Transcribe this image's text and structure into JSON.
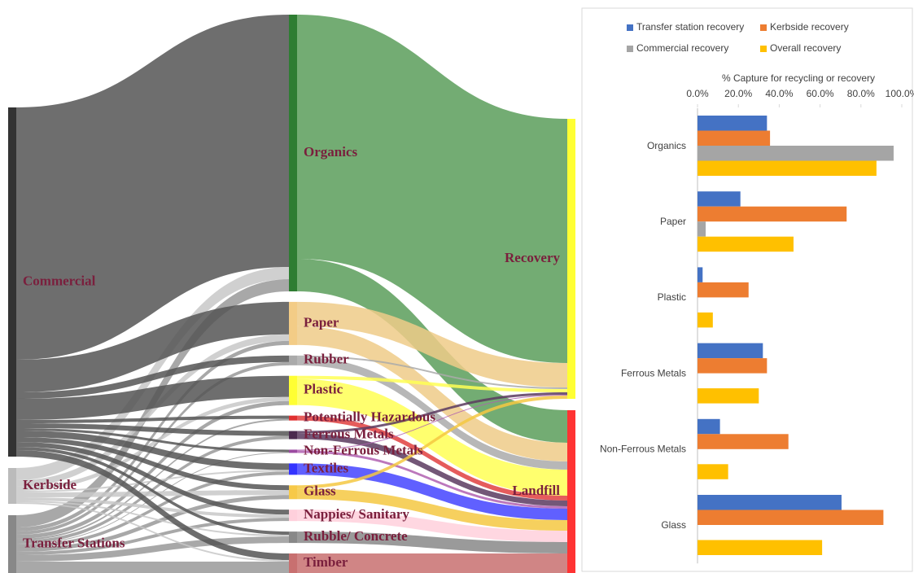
{
  "chart_data": [
    {
      "type": "sankey",
      "nodes": [
        {
          "name": "Commercial",
          "color": "#333333",
          "flow_color": "#555555"
        },
        {
          "name": "Kerbside",
          "color": "#bbbbbb",
          "flow_color": "#c8c8c8"
        },
        {
          "name": "Transfer Stations",
          "color": "#888888",
          "flow_color": "#999999"
        },
        {
          "name": "Organics",
          "color": "#2e7d32",
          "flow_color": "#5a9e5a"
        },
        {
          "name": "Paper",
          "color": "#f3cc86",
          "flow_color": "#efcb88"
        },
        {
          "name": "Rubber",
          "color": "#aaaaaa",
          "flow_color": "#aaaaaa"
        },
        {
          "name": "Plastic",
          "color": "#ffff33",
          "flow_color": "#ffff55"
        },
        {
          "name": "Potentially Hazardous",
          "color": "#e03030",
          "flow_color": "#e04040"
        },
        {
          "name": "Ferrous Metals",
          "color": "#4b2a4f",
          "flow_color": "#5b3a5f"
        },
        {
          "name": "Non-Ferrous Metals",
          "color": "#9b4aa0",
          "flow_color": "#b060b0"
        },
        {
          "name": "Textiles",
          "color": "#3333ff",
          "flow_color": "#4444ff"
        },
        {
          "name": "Glass",
          "color": "#f7c948",
          "flow_color": "#f5c842"
        },
        {
          "name": "Nappies/ Sanitary",
          "color": "#ffd0dc",
          "flow_color": "#ffd0dc"
        },
        {
          "name": "Rubble/ Concrete",
          "color": "#888888",
          "flow_color": "#888888"
        },
        {
          "name": "Timber",
          "color": "#c87070",
          "flow_color": "#c87070"
        },
        {
          "name": "Recovery",
          "color": "#ffff33"
        },
        {
          "name": "Landfill",
          "color": "#ff3333"
        }
      ],
      "links": [
        {
          "source": "Commercial",
          "target": "Organics",
          "value": 310
        },
        {
          "source": "Kerbside",
          "target": "Organics",
          "value": 15
        },
        {
          "source": "Transfer Stations",
          "target": "Organics",
          "value": 15
        },
        {
          "source": "Commercial",
          "target": "Paper",
          "value": 40
        },
        {
          "source": "Kerbside",
          "target": "Paper",
          "value": 8
        },
        {
          "source": "Transfer Stations",
          "target": "Paper",
          "value": 5
        },
        {
          "source": "Commercial",
          "target": "Rubber",
          "value": 8
        },
        {
          "source": "Transfer Stations",
          "target": "Rubber",
          "value": 4
        },
        {
          "source": "Commercial",
          "target": "Plastic",
          "value": 26
        },
        {
          "source": "Kerbside",
          "target": "Plastic",
          "value": 5
        },
        {
          "source": "Transfer Stations",
          "target": "Plastic",
          "value": 5
        },
        {
          "source": "Commercial",
          "target": "Potentially Hazardous",
          "value": 4
        },
        {
          "source": "Transfer Stations",
          "target": "Potentially Hazardous",
          "value": 2
        },
        {
          "source": "Commercial",
          "target": "Ferrous Metals",
          "value": 6
        },
        {
          "source": "Transfer Stations",
          "target": "Ferrous Metals",
          "value": 4
        },
        {
          "source": "Commercial",
          "target": "Non-Ferrous Metals",
          "value": 3
        },
        {
          "source": "Transfer Stations",
          "target": "Non-Ferrous Metals",
          "value": 1
        },
        {
          "source": "Commercial",
          "target": "Textiles",
          "value": 8
        },
        {
          "source": "Kerbside",
          "target": "Textiles",
          "value": 2
        },
        {
          "source": "Transfer Stations",
          "target": "Textiles",
          "value": 4
        },
        {
          "source": "Commercial",
          "target": "Glass",
          "value": 6
        },
        {
          "source": "Kerbside",
          "target": "Glass",
          "value": 6
        },
        {
          "source": "Transfer Stations",
          "target": "Glass",
          "value": 5
        },
        {
          "source": "Commercial",
          "target": "Nappies/ Sanitary",
          "value": 6
        },
        {
          "source": "Kerbside",
          "target": "Nappies/ Sanitary",
          "value": 4
        },
        {
          "source": "Transfer Stations",
          "target": "Nappies/ Sanitary",
          "value": 4
        },
        {
          "source": "Commercial",
          "target": "Rubble/ Concrete",
          "value": 4
        },
        {
          "source": "Kerbside",
          "target": "Rubble/ Concrete",
          "value": 2
        },
        {
          "source": "Transfer Stations",
          "target": "Rubble/ Concrete",
          "value": 8
        },
        {
          "source": "Commercial",
          "target": "Timber",
          "value": 8
        },
        {
          "source": "Kerbside",
          "target": "Timber",
          "value": 2
        },
        {
          "source": "Transfer Stations",
          "target": "Timber",
          "value": 14
        },
        {
          "source": "Organics",
          "target": "Recovery",
          "value": 300
        },
        {
          "source": "Organics",
          "target": "Landfill",
          "value": 40
        },
        {
          "source": "Paper",
          "target": "Recovery",
          "value": 30
        },
        {
          "source": "Paper",
          "target": "Landfill",
          "value": 23
        },
        {
          "source": "Rubber",
          "target": "Recovery",
          "value": 2
        },
        {
          "source": "Rubber",
          "target": "Landfill",
          "value": 10
        },
        {
          "source": "Plastic",
          "target": "Recovery",
          "value": 4
        },
        {
          "source": "Plastic",
          "target": "Landfill",
          "value": 32
        },
        {
          "source": "Potentially Hazardous",
          "target": "Landfill",
          "value": 6
        },
        {
          "source": "Ferrous Metals",
          "target": "Recovery",
          "value": 3
        },
        {
          "source": "Ferrous Metals",
          "target": "Landfill",
          "value": 7
        },
        {
          "source": "Non-Ferrous Metals",
          "target": "Recovery",
          "value": 1
        },
        {
          "source": "Non-Ferrous Metals",
          "target": "Landfill",
          "value": 3
        },
        {
          "source": "Textiles",
          "target": "Landfill",
          "value": 14
        },
        {
          "source": "Glass",
          "target": "Recovery",
          "value": 4
        },
        {
          "source": "Glass",
          "target": "Landfill",
          "value": 13
        },
        {
          "source": "Nappies/ Sanitary",
          "target": "Landfill",
          "value": 14
        },
        {
          "source": "Rubble/ Concrete",
          "target": "Landfill",
          "value": 14
        },
        {
          "source": "Timber",
          "target": "Landfill",
          "value": 24
        }
      ]
    },
    {
      "type": "bar",
      "orientation": "horizontal",
      "x_label": "% Capture for recycling or recovery",
      "categories": [
        "Organics",
        "Paper",
        "Plastic",
        "Ferrous Metals",
        "Non-Ferrous Metals",
        "Glass"
      ],
      "series": [
        {
          "name": "Transfer station recovery",
          "color": "#4472c4",
          "values": [
            34,
            21,
            2.5,
            32,
            11,
            70.5
          ]
        },
        {
          "name": "Kerbside recovery",
          "color": "#ed7d31",
          "values": [
            35.5,
            73,
            25,
            34,
            44.5,
            91
          ]
        },
        {
          "name": "Commercial recovery",
          "color": "#a5a5a5",
          "values": [
            96,
            4,
            null,
            null,
            null,
            null
          ]
        },
        {
          "name": "Overall recovery",
          "color": "#ffc000",
          "values": [
            87.6,
            47,
            7.5,
            30,
            15,
            61
          ]
        }
      ],
      "xlim": [
        0,
        100
      ],
      "xticks": [
        {
          "value": 0,
          "label": "0.0%"
        },
        {
          "value": 20,
          "label": "20.0%"
        },
        {
          "value": 40,
          "label": "40.0%"
        },
        {
          "value": 60,
          "label": "60.0%"
        },
        {
          "value": 80,
          "label": "80.0%"
        },
        {
          "value": 100,
          "label": "100.0%"
        }
      ],
      "legend": "top"
    }
  ]
}
